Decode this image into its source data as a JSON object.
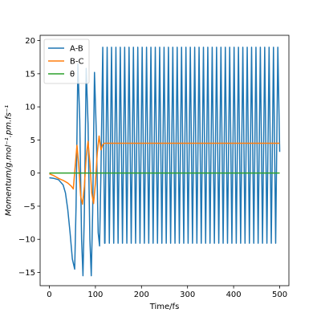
{
  "chart_data": {
    "type": "line",
    "xlabel": "Time/fs",
    "ylabel": "Momentum/g.mol⁻¹.pm.fs⁻¹",
    "xlim": [
      -20,
      520
    ],
    "ylim": [
      -17,
      20.8
    ],
    "xticks": [
      0,
      100,
      200,
      300,
      400,
      500
    ],
    "yticks": [
      -15,
      -10,
      -5,
      0,
      5,
      10,
      15,
      20
    ],
    "xtick_labels": [
      "0",
      "100",
      "200",
      "300",
      "400",
      "500"
    ],
    "ytick_labels": [
      "−15",
      "−10",
      "−5",
      "0",
      "5",
      "10",
      "15",
      "20"
    ],
    "legend_position": "upper-left",
    "series": [
      {
        "name": "A-B",
        "color": "#1f77b4",
        "x": [
          0,
          10,
          20,
          30,
          35,
          40,
          45,
          50,
          55,
          58,
          62,
          66,
          70,
          73,
          76,
          80,
          84,
          88,
          91,
          94,
          98,
          102,
          106,
          109,
          112,
          116,
          120
        ],
        "y": [
          -0.7,
          -0.8,
          -1.0,
          -1.8,
          -3.0,
          -5.5,
          -9.0,
          -13.0,
          -14.5,
          -5.0,
          16.5,
          8.0,
          -10.0,
          -15.5,
          -6.0,
          15.8,
          7.5,
          -10.0,
          -15.5,
          -6.0,
          15.2,
          6.0,
          -9.0,
          -11.0,
          0.0,
          19.0,
          -10.6
        ],
        "steady_min": -10.6,
        "steady_max": 19.0,
        "steady_start": 116,
        "steady_period": 9.5,
        "x_end": 500,
        "end_value": 3.2
      },
      {
        "name": "B-C",
        "color": "#ff7f0e",
        "x": [
          0,
          10,
          20,
          30,
          40,
          48,
          52,
          56,
          60,
          64,
          68,
          72,
          76,
          80,
          84,
          88,
          92,
          96,
          100,
          104,
          108,
          112,
          116,
          120,
          500
        ],
        "y": [
          -0.1,
          -0.4,
          -0.8,
          -1.1,
          -1.5,
          -2.0,
          -2.4,
          1.0,
          4.2,
          1.0,
          -3.5,
          -4.7,
          -2.0,
          2.5,
          4.8,
          1.5,
          -3.0,
          -4.6,
          -1.5,
          3.0,
          5.6,
          3.5,
          4.3,
          4.5,
          4.5
        ]
      },
      {
        "name": "θ",
        "color": "#2ca02c",
        "x": [
          0,
          500
        ],
        "y": [
          0,
          0
        ]
      }
    ]
  }
}
